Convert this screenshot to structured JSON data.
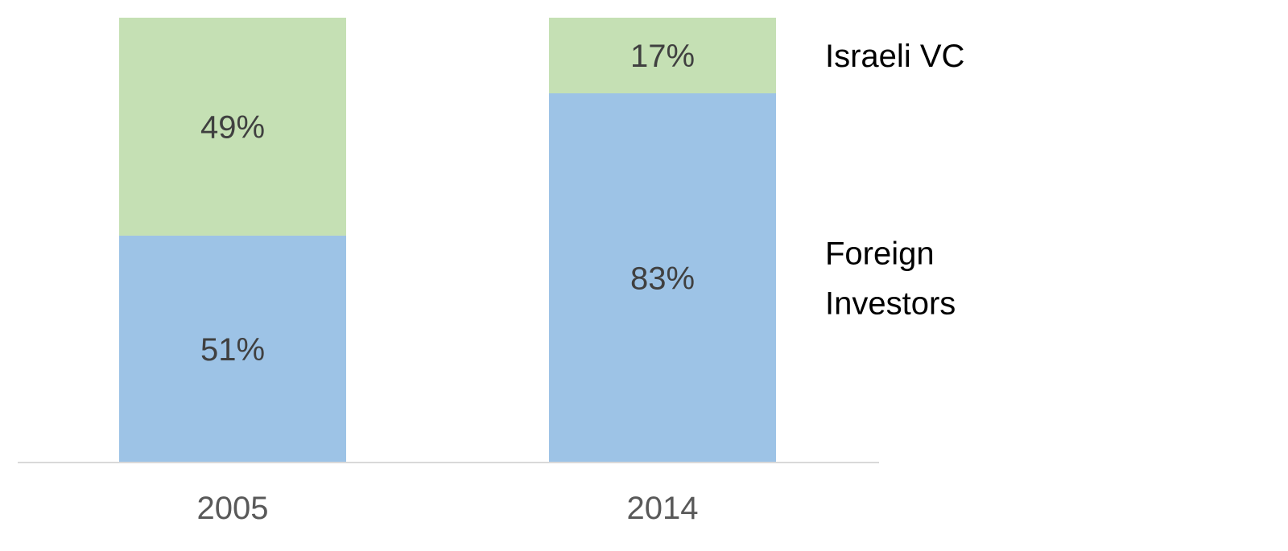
{
  "chart_data": {
    "type": "bar",
    "stacked": true,
    "percent_stacked": true,
    "categories": [
      "2005",
      "2014"
    ],
    "series": [
      {
        "name": "Foreign Investors",
        "name_lines": [
          "Foreign",
          "Investors"
        ],
        "values": [
          51,
          83
        ],
        "labels": [
          "51%",
          "83%"
        ],
        "color": "#9DC3E6"
      },
      {
        "name": "Israeli VC",
        "name_lines": [
          "Israeli VC"
        ],
        "values": [
          49,
          17
        ],
        "labels": [
          "49%",
          "17%"
        ],
        "color": "#C5E0B4"
      }
    ],
    "ylim": [
      0,
      100
    ],
    "title": "",
    "xlabel": "",
    "ylabel": "",
    "grid": false,
    "legend": "right",
    "colors": {
      "axis": "#D9D9D9",
      "data_label": "#404040",
      "tick_label": "#595959",
      "legend_label": "#000000"
    }
  }
}
